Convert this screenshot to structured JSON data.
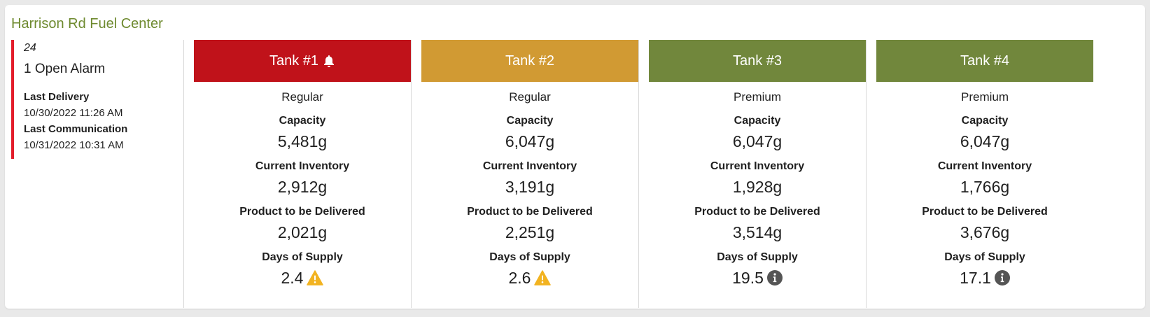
{
  "station": {
    "name": "Harrison Rd Fuel Center",
    "site_number": "24",
    "alarm_text": "1 Open Alarm",
    "last_delivery_label": "Last Delivery",
    "last_delivery_value": "10/30/2022 11:26 AM",
    "last_communication_label": "Last Communication",
    "last_communication_value": "10/31/2022 10:31 AM"
  },
  "labels": {
    "capacity": "Capacity",
    "current_inventory": "Current Inventory",
    "product_to_be_delivered": "Product to be Delivered",
    "days_of_supply": "Days of Supply"
  },
  "colors": {
    "alarm_red": "#c0121a",
    "warning_orange": "#d19a33",
    "ok_green": "#71873c",
    "title_green": "#6e8a2f",
    "warning_icon": "#f2b321",
    "info_icon": "#555555"
  },
  "tanks": [
    {
      "name": "Tank #1",
      "product": "Regular",
      "capacity": "5,481g",
      "inventory": "2,912g",
      "to_deliver": "2,021g",
      "days_supply": "2.4",
      "status": "alarm",
      "header_icon": "bell-icon",
      "supply_icon": "warning-icon"
    },
    {
      "name": "Tank #2",
      "product": "Regular",
      "capacity": "6,047g",
      "inventory": "3,191g",
      "to_deliver": "2,251g",
      "days_supply": "2.6",
      "status": "warning",
      "header_icon": "",
      "supply_icon": "warning-icon"
    },
    {
      "name": "Tank #3",
      "product": "Premium",
      "capacity": "6,047g",
      "inventory": "1,928g",
      "to_deliver": "3,514g",
      "days_supply": "19.5",
      "status": "ok",
      "header_icon": "",
      "supply_icon": "info-icon"
    },
    {
      "name": "Tank #4",
      "product": "Premium",
      "capacity": "6,047g",
      "inventory": "1,766g",
      "to_deliver": "3,676g",
      "days_supply": "17.1",
      "status": "ok",
      "header_icon": "",
      "supply_icon": "info-icon"
    }
  ]
}
